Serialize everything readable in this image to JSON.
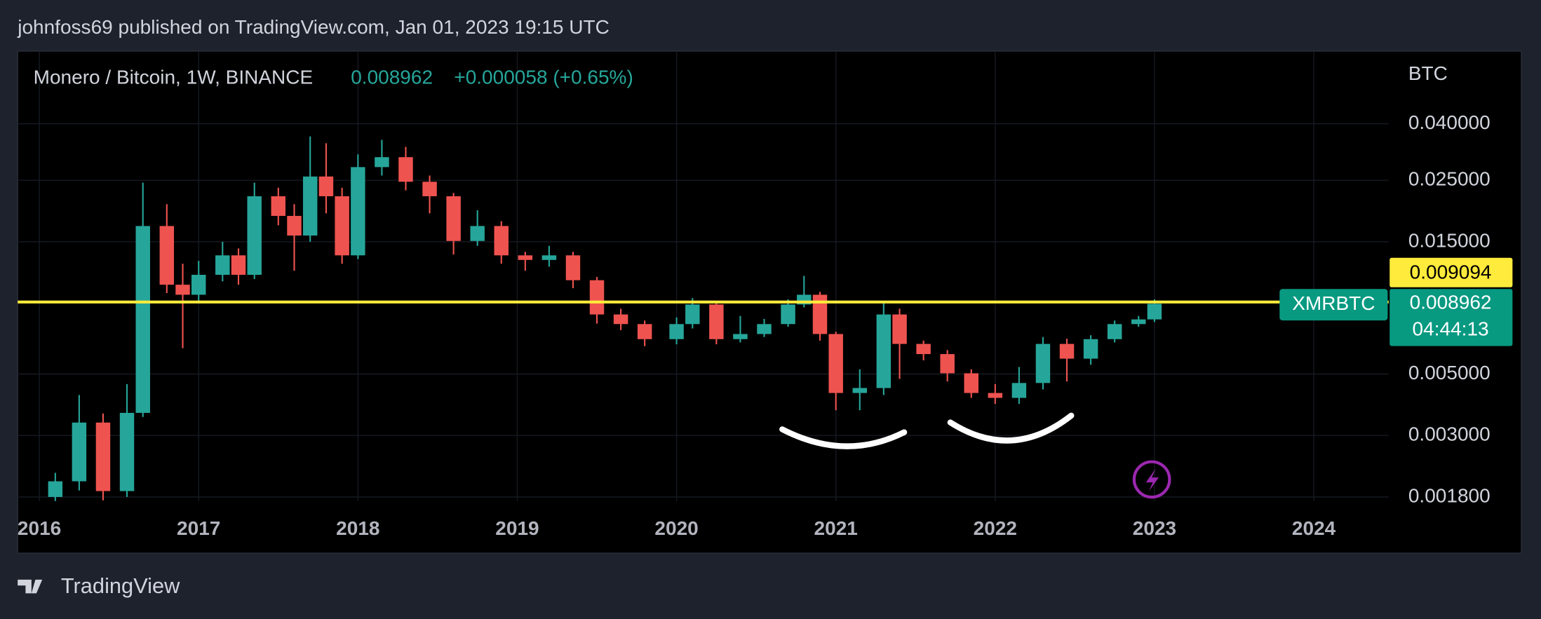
{
  "chart_data": {
    "type": "candlestick",
    "title": "johnfoss69 published on TradingView.com, Jan 01, 2023 19:15 UTC",
    "symbol_title": "Monero / Bitcoin, 1W, BINANCE",
    "last": "0.008962",
    "change": "+0.000058 (+0.65%)",
    "currency": "BTC",
    "symbol": "XMRBTC",
    "countdown": "04:44:13",
    "brand": "TradingView",
    "log_scale": true,
    "grid": true,
    "up_color": "#26a69a",
    "down_color": "#ef5350",
    "hline": {
      "value": 0.009094,
      "color": "#ffeb3b"
    },
    "last_price": {
      "value": 0.008962,
      "color": "#089981"
    },
    "xlim": [
      2015.864,
      2024.47
    ],
    "xticks": [
      2016,
      2017,
      2018,
      2019,
      2020,
      2021,
      2022,
      2023,
      2024
    ],
    "ylim": [
      0.00174,
      0.0731
    ],
    "yticks": [
      {
        "value": 0.04,
        "label": "0.040000"
      },
      {
        "value": 0.025,
        "label": "0.025000"
      },
      {
        "value": 0.015,
        "label": "0.015000"
      },
      {
        "value": 0.005,
        "label": "0.005000"
      },
      {
        "value": 0.003,
        "label": "0.003000"
      },
      {
        "value": 0.0018,
        "label": "0.001800"
      }
    ],
    "x": [
      2016.1,
      2016.25,
      2016.4,
      2016.55,
      2016.65,
      2016.8,
      2016.9,
      2017.0,
      2017.15,
      2017.25,
      2017.35,
      2017.5,
      2017.6,
      2017.7,
      2017.8,
      2017.9,
      2018.0,
      2018.15,
      2018.3,
      2018.45,
      2018.6,
      2018.75,
      2018.9,
      2019.05,
      2019.2,
      2019.35,
      2019.5,
      2019.65,
      2019.8,
      2020.0,
      2020.1,
      2020.25,
      2020.4,
      2020.55,
      2020.7,
      2020.8,
      2020.9,
      2021.0,
      2021.15,
      2021.3,
      2021.4,
      2021.55,
      2021.7,
      2021.85,
      2022.0,
      2022.15,
      2022.3,
      2022.45,
      2022.6,
      2022.75,
      2022.9,
      2023.0
    ],
    "open": [
      0.0018,
      0.00205,
      0.00334,
      0.00189,
      0.00362,
      0.0171,
      0.0105,
      0.00966,
      0.0114,
      0.0134,
      0.0114,
      0.0219,
      0.0186,
      0.0158,
      0.0258,
      0.0219,
      0.0134,
      0.0279,
      0.0303,
      0.0247,
      0.0219,
      0.0151,
      0.0171,
      0.0134,
      0.0129,
      0.0134,
      0.0109,
      0.0082,
      0.00757,
      0.00668,
      0.00757,
      0.00891,
      0.00668,
      0.00697,
      0.00757,
      0.00891,
      0.00966,
      0.00697,
      0.00427,
      0.00445,
      0.0082,
      0.00642,
      0.0059,
      0.00503,
      0.00427,
      0.0041,
      0.00464,
      0.00642,
      0.00568,
      0.00668,
      0.00757,
      0.00787
    ],
    "high": [
      0.0022,
      0.0042,
      0.0036,
      0.0046,
      0.0245,
      0.0205,
      0.0125,
      0.0128,
      0.015,
      0.0142,
      0.0245,
      0.0235,
      0.0205,
      0.036,
      0.034,
      0.0235,
      0.031,
      0.035,
      0.033,
      0.026,
      0.0225,
      0.0195,
      0.0178,
      0.0138,
      0.0145,
      0.0138,
      0.0112,
      0.0086,
      0.0078,
      0.008,
      0.0094,
      0.0091,
      0.0081,
      0.0079,
      0.0093,
      0.0113,
      0.0099,
      0.0071,
      0.0052,
      0.0091,
      0.0086,
      0.0066,
      0.0061,
      0.0052,
      0.0046,
      0.0053,
      0.0068,
      0.0067,
      0.0069,
      0.0078,
      0.0081,
      0.0093
    ],
    "low": [
      0.0017,
      0.0019,
      0.00175,
      0.0018,
      0.0035,
      0.0098,
      0.0062,
      0.0091,
      0.0108,
      0.0105,
      0.011,
      0.0172,
      0.0118,
      0.015,
      0.019,
      0.0125,
      0.013,
      0.026,
      0.023,
      0.019,
      0.0135,
      0.0145,
      0.0125,
      0.0118,
      0.0122,
      0.0102,
      0.0076,
      0.0072,
      0.0063,
      0.0064,
      0.0073,
      0.0064,
      0.0065,
      0.0068,
      0.0074,
      0.0087,
      0.0066,
      0.0037,
      0.0037,
      0.0042,
      0.0048,
      0.0056,
      0.0047,
      0.0041,
      0.0039,
      0.0039,
      0.0044,
      0.0047,
      0.0054,
      0.0065,
      0.0074,
      0.0077
    ],
    "close": [
      0.00205,
      0.00334,
      0.00189,
      0.00362,
      0.0171,
      0.0105,
      0.00966,
      0.0114,
      0.0134,
      0.0114,
      0.0219,
      0.0186,
      0.0158,
      0.0258,
      0.0219,
      0.0134,
      0.0279,
      0.0303,
      0.0247,
      0.0219,
      0.0151,
      0.0171,
      0.0134,
      0.0129,
      0.0134,
      0.0109,
      0.0082,
      0.00757,
      0.00668,
      0.00757,
      0.00891,
      0.00668,
      0.00697,
      0.00757,
      0.00891,
      0.00966,
      0.00697,
      0.00427,
      0.00445,
      0.0082,
      0.00642,
      0.0059,
      0.00503,
      0.00427,
      0.0041,
      0.00464,
      0.00642,
      0.00568,
      0.00668,
      0.00757,
      0.00787,
      0.00896
    ]
  }
}
